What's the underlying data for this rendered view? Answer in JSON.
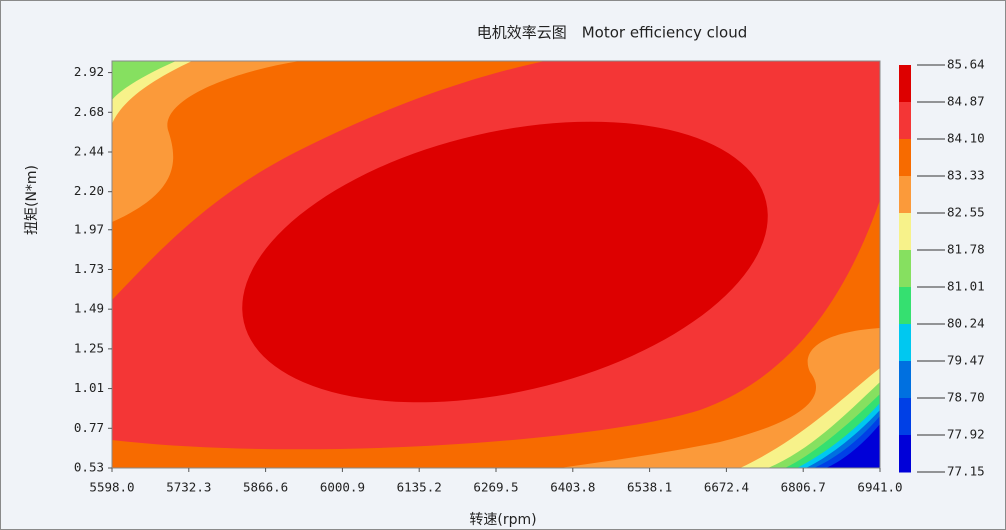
{
  "chart_data": {
    "type": "contour",
    "title": "电机效率云图　Motor efficiency cloud",
    "x_label": "转速(rpm)",
    "y_label": "扭矩(N*m)",
    "xlim": [
      5598,
      6941
    ],
    "xticks": [
      {
        "value": 5598,
        "label": "5598.0"
      },
      5732.3,
      5866.6,
      6000.9,
      6135.2,
      6269.5,
      6403.8,
      6538.1,
      6672.4,
      6806.7,
      {
        "value": 6941,
        "label": "6941.0"
      }
    ],
    "ylim": [
      0.53,
      2.99
    ],
    "yticks": [
      0.53,
      0.77,
      1.01,
      1.25,
      1.49,
      1.73,
      1.97,
      {
        "value": 2.2,
        "label": "2.20"
      },
      2.44,
      2.68,
      2.92
    ],
    "colorbar": {
      "levels": [
        85.64,
        84.87,
        {
          "value": 84.1,
          "label": "84.10"
        },
        83.33,
        82.55,
        81.78,
        81.01,
        80.24,
        79.47,
        {
          "value": 78.7,
          "label": "78.70"
        },
        77.92,
        77.15
      ],
      "colors": [
        "#dd0000",
        "#f43636",
        "#f76b00",
        "#fb9a3a",
        "#f7f28a",
        "#86e060",
        "#35e070",
        "#00c8f0",
        "#0070e0",
        "#0040e6",
        "#0000d8"
      ]
    }
  }
}
